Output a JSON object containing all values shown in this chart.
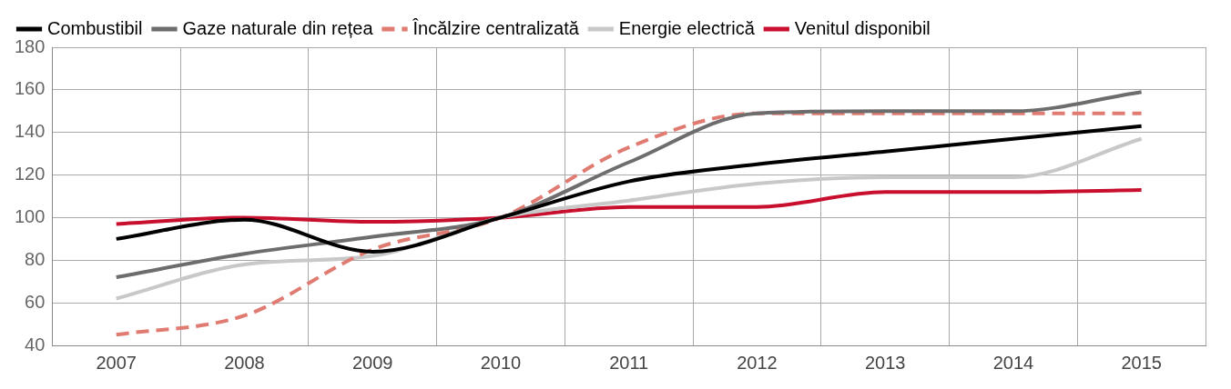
{
  "chart_data": {
    "type": "line",
    "categories": [
      "2007",
      "2008",
      "2009",
      "2010",
      "2011",
      "2012",
      "2013",
      "2014",
      "2015"
    ],
    "series": [
      {
        "name": "Combustibil",
        "color": "#000000",
        "values": [
          90,
          99,
          84,
          100,
          117,
          125,
          131,
          137,
          143
        ]
      },
      {
        "name": "Gaze naturale din rețea",
        "color": "#6d6d6d",
        "values": [
          72,
          83,
          91,
          100,
          126,
          149,
          150,
          150,
          159
        ]
      },
      {
        "name": "Încălzire centralizată",
        "color": "#e07b72",
        "line_style": "dashed",
        "values": [
          45,
          54,
          85,
          100,
          133,
          149,
          149,
          149,
          149
        ]
      },
      {
        "name": "Energie electrică",
        "color": "#c8c8c8",
        "values": [
          62,
          78,
          82,
          100,
          108,
          116,
          119,
          119,
          137
        ]
      },
      {
        "name": "Venitul disponibil",
        "color": "#c8102e",
        "values": [
          97,
          100,
          98,
          100,
          105,
          105,
          112,
          112,
          113
        ]
      }
    ],
    "ylim": [
      40,
      180
    ],
    "yticks": [
      40,
      60,
      80,
      100,
      120,
      140,
      160,
      180
    ],
    "grid": true,
    "legend": "top left",
    "marker": "none",
    "line_style": "solid"
  }
}
